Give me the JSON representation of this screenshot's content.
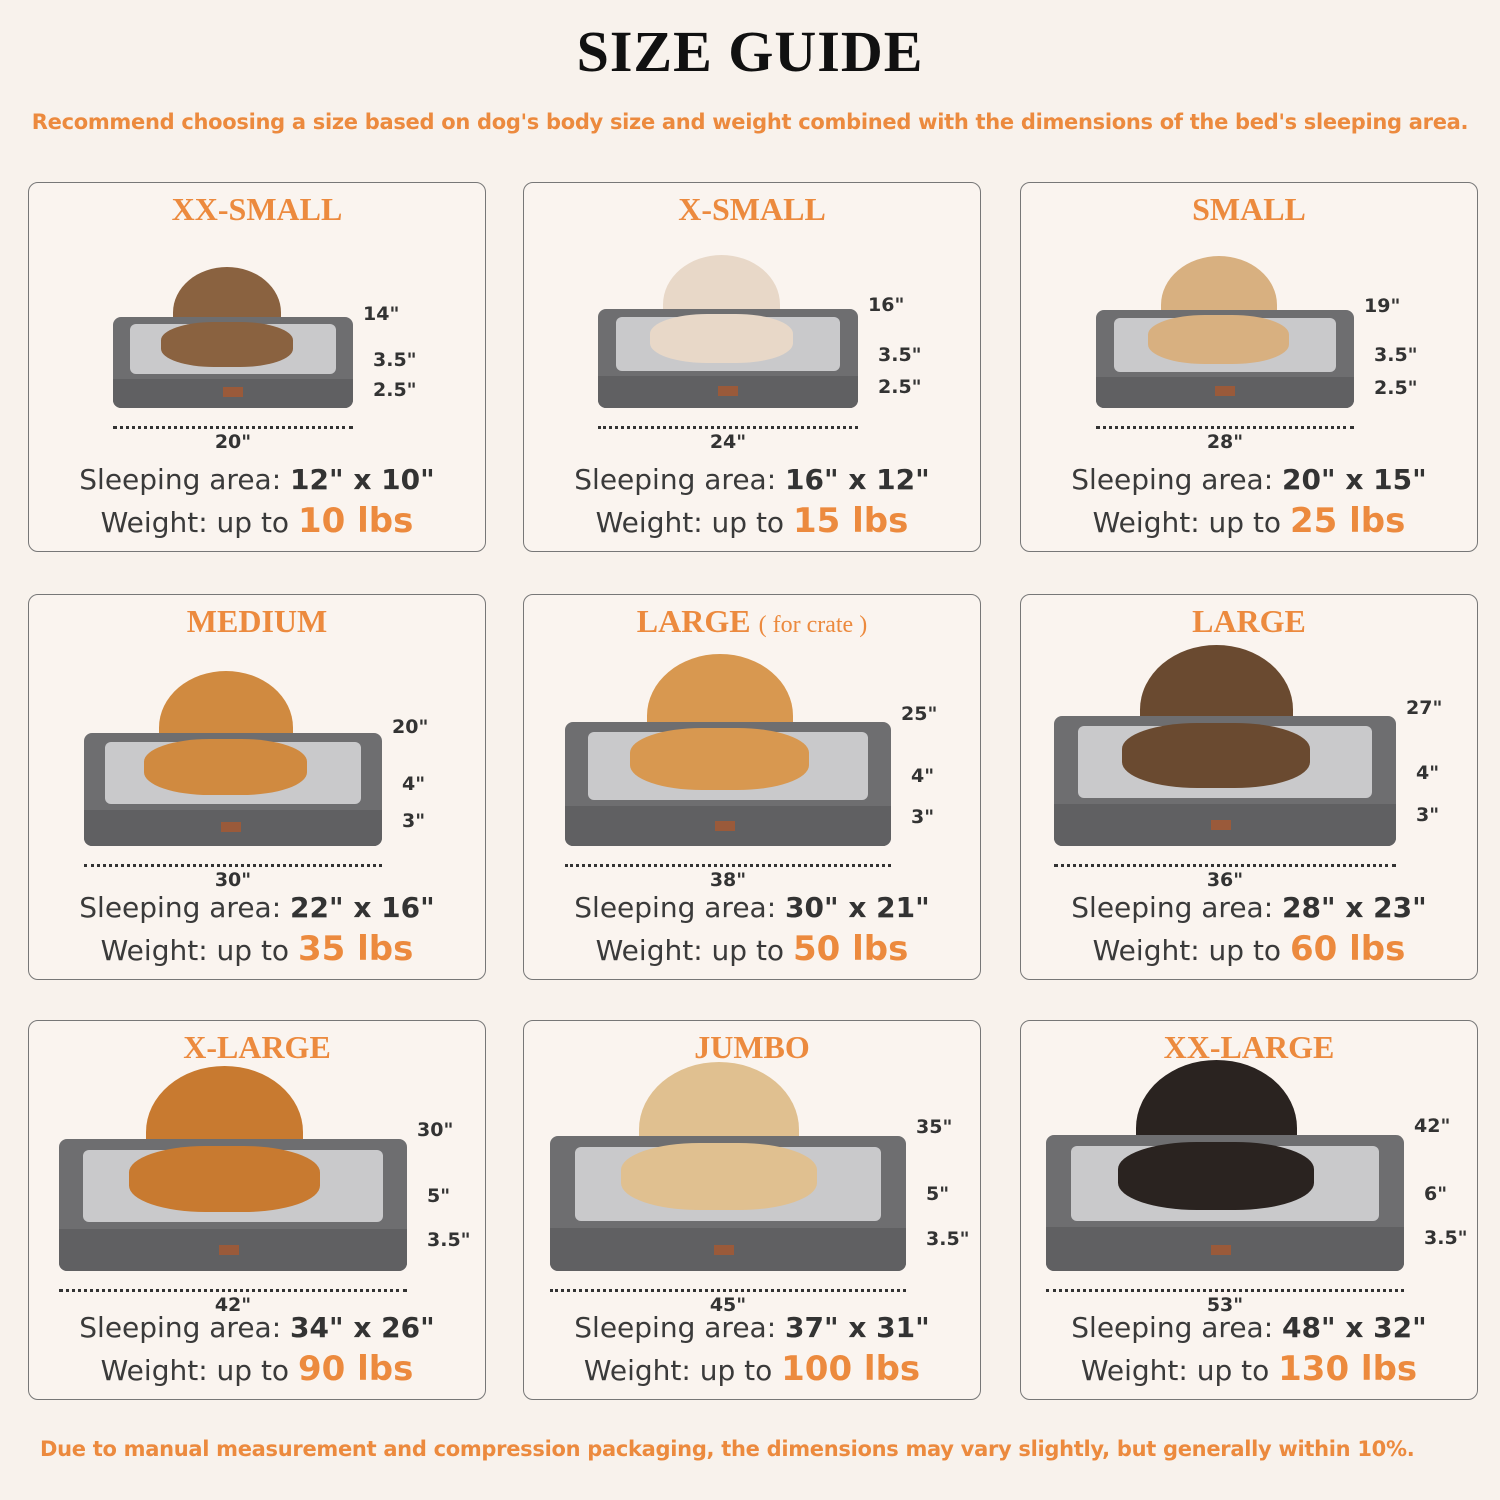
{
  "title": "SIZE GUIDE",
  "subtitle": "Recommend choosing a size based on dog's body size and weight combined with the dimensions of the bed's sleeping area.",
  "footer": "Due to manual measurement and compression packaging, the dimensions may vary slightly, but generally within 10%.",
  "accent_color": "#ec8a3e",
  "labels": {
    "sleeping_area": "Sleeping area: ",
    "weight": "Weight: up to "
  },
  "sizes": [
    {
      "name": "XX-SMALL",
      "note": "",
      "width": "20\"",
      "depth": "14\"",
      "bolster": "3.5\"",
      "base": "2.5\"",
      "sleeping_area": "12\" x 10\"",
      "weight": "10 lbs",
      "pet": "cat"
    },
    {
      "name": "X-SMALL",
      "note": "",
      "width": "24\"",
      "depth": "16\"",
      "bolster": "3.5\"",
      "base": "2.5\"",
      "sleeping_area": "16\" x 12\"",
      "weight": "15 lbs",
      "pet": "dog"
    },
    {
      "name": "SMALL",
      "note": "",
      "width": "28\"",
      "depth": "19\"",
      "bolster": "3.5\"",
      "base": "2.5\"",
      "sleeping_area": "20\" x 15\"",
      "weight": "25 lbs",
      "pet": "dog"
    },
    {
      "name": "MEDIUM",
      "note": "",
      "width": "30\"",
      "depth": "20\"",
      "bolster": "4\"",
      "base": "3\"",
      "sleeping_area": "22\" x 16\"",
      "weight": "35 lbs",
      "pet": "dog"
    },
    {
      "name": "LARGE",
      "note": "( for crate )",
      "width": "38\"",
      "depth": "25\"",
      "bolster": "4\"",
      "base": "3\"",
      "sleeping_area": "30\" x 21\"",
      "weight": "50 lbs",
      "pet": "dog"
    },
    {
      "name": "LARGE",
      "note": "",
      "width": "36\"",
      "depth": "27\"",
      "bolster": "4\"",
      "base": "3\"",
      "sleeping_area": "28\" x 23\"",
      "weight": "60 lbs",
      "pet": "dog"
    },
    {
      "name": "X-LARGE",
      "note": "",
      "width": "42\"",
      "depth": "30\"",
      "bolster": "5\"",
      "base": "3.5\"",
      "sleeping_area": "34\" x 26\"",
      "weight": "90 lbs",
      "pet": "dog"
    },
    {
      "name": "JUMBO",
      "note": "",
      "width": "45\"",
      "depth": "35\"",
      "bolster": "5\"",
      "base": "3.5\"",
      "sleeping_area": "37\" x 31\"",
      "weight": "100 lbs",
      "pet": "dog"
    },
    {
      "name": "XX-LARGE",
      "note": "",
      "width": "53\"",
      "depth": "42\"",
      "bolster": "6\"",
      "base": "3.5\"",
      "sleeping_area": "48\" x 32\"",
      "weight": "130 lbs",
      "pet": "dog"
    }
  ]
}
